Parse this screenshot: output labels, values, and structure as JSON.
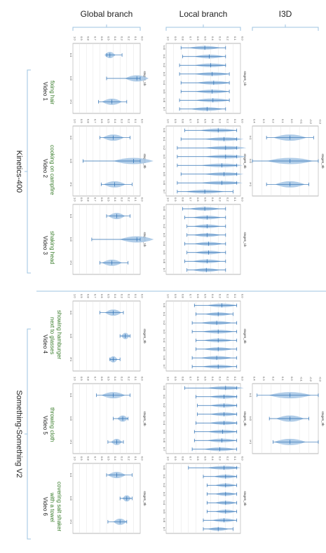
{
  "columns": [
    "Global branch",
    "Local branch",
    "I3D"
  ],
  "groups": [
    "Kinetics-400",
    "Something-Something V2"
  ],
  "videos": [
    {
      "label": "Video 1",
      "action": "fixing hair"
    },
    {
      "label": "Video 2",
      "action": "cooking on campfire"
    },
    {
      "label": "Video 3",
      "action": "shaking head"
    },
    {
      "label": "Video 4",
      "action": "showing hamburger next to glasses"
    },
    {
      "label": "Video 5",
      "action": "throwing cloth"
    },
    {
      "label": "Video 6",
      "action": "covering salt shaker with a towel"
    }
  ],
  "colors": {
    "violin": "#a9c8e6",
    "whisker": "#2c6fb3",
    "bracket": "#9cc3e0",
    "action": "#3a7d2c"
  },
  "chart_data": [
    {
      "type": "violin",
      "panel": "global-video1",
      "ylabel": "stage5_1b",
      "categories": [
        "t=1",
        "t=0",
        "t+1"
      ],
      "ylim": [
        0,
        1.0
      ],
      "grid": true,
      "series": [
        {
          "values": [
            {
              "min": 0.27,
              "q": 0.45,
              "max": 0.5
            },
            {
              "min": 0.0,
              "q": 0.05,
              "max": 0.5
            },
            {
              "min": 0.2,
              "q": 0.42,
              "max": 0.62
            }
          ]
        }
      ]
    },
    {
      "type": "violin",
      "panel": "local-video1",
      "ylabel": "stage5_1b",
      "categories": [
        "t=0",
        "t=1",
        "t=2",
        "t=3",
        "t=4",
        "t=5",
        "t=6",
        "t=7"
      ],
      "ylim": [
        0,
        1.0
      ],
      "grid": true,
      "series": [
        {
          "values": [
            {
              "min": 0.2,
              "q": 0.48,
              "max": 0.8
            },
            {
              "min": 0.2,
              "q": 0.42,
              "max": 0.78
            },
            {
              "min": 0.2,
              "q": 0.4,
              "max": 0.82
            },
            {
              "min": 0.15,
              "q": 0.38,
              "max": 0.82
            },
            {
              "min": 0.15,
              "q": 0.36,
              "max": 0.8
            },
            {
              "min": 0.15,
              "q": 0.38,
              "max": 0.8
            },
            {
              "min": 0.15,
              "q": 0.37,
              "max": 0.82
            },
            {
              "min": 0.2,
              "q": 0.45,
              "max": 0.82
            }
          ]
        }
      ]
    },
    {
      "type": "violin",
      "panel": "global-video2",
      "ylabel": "stage5_3b",
      "categories": [
        "t=1",
        "t=0",
        "t+1"
      ],
      "ylim": [
        0,
        1.0
      ],
      "grid": true,
      "series": [
        {
          "values": [
            {
              "min": 0.15,
              "q": 0.4,
              "max": 0.6
            },
            {
              "min": 0.0,
              "q": 0.1,
              "max": 0.85
            },
            {
              "min": 0.12,
              "q": 0.38,
              "max": 0.58
            }
          ]
        }
      ]
    },
    {
      "type": "violin",
      "panel": "local-video2",
      "ylabel": "stage5_3b",
      "categories": [
        "t=0",
        "t=1",
        "t=2",
        "t=3",
        "t=4",
        "t=5",
        "t=6",
        "t=7"
      ],
      "ylim": [
        0,
        1.0
      ],
      "grid": true,
      "series": [
        {
          "values": [
            {
              "min": 0.05,
              "q": 0.3,
              "max": 0.75
            },
            {
              "min": 0.05,
              "q": 0.22,
              "max": 0.8
            },
            {
              "min": 0.05,
              "q": 0.2,
              "max": 0.85
            },
            {
              "min": 0.05,
              "q": 0.2,
              "max": 0.85
            },
            {
              "min": 0.05,
              "q": 0.25,
              "max": 0.85
            },
            {
              "min": 0.05,
              "q": 0.22,
              "max": 0.8
            },
            {
              "min": 0.05,
              "q": 0.25,
              "max": 0.85
            },
            {
              "min": 0.1,
              "q": 0.48,
              "max": 0.85
            }
          ]
        }
      ]
    },
    {
      "type": "violin",
      "panel": "i3d-video2",
      "ylabel": "stage5_3b",
      "categories": [
        "t=1",
        "t=0",
        "t+1"
      ],
      "ylim": [
        -0.3,
        0.4
      ],
      "grid": true,
      "series": [
        {
          "values": [
            {
              "min": -0.25,
              "q": 0.0,
              "max": 0.25
            },
            {
              "min": -0.3,
              "q": 0.0,
              "max": 0.4
            },
            {
              "min": -0.2,
              "q": 0.0,
              "max": 0.25
            }
          ]
        }
      ]
    },
    {
      "type": "violin",
      "panel": "global-video3",
      "ylabel": "stage5_1b",
      "categories": [
        "t=1",
        "t=0",
        "t+1"
      ],
      "ylim": [
        0,
        1.0
      ],
      "grid": true,
      "series": [
        {
          "values": [
            {
              "min": 0.15,
              "q": 0.35,
              "max": 0.5
            },
            {
              "min": 0.0,
              "q": 0.05,
              "max": 0.72
            },
            {
              "min": 0.18,
              "q": 0.42,
              "max": 0.6
            }
          ]
        }
      ]
    },
    {
      "type": "violin",
      "panel": "local-video3",
      "ylabel": "stage5_1b",
      "categories": [
        "t=0",
        "t=1",
        "t=2",
        "t=3",
        "t=4",
        "t=5",
        "t=6",
        "t=7"
      ],
      "ylim": [
        0,
        1.0
      ],
      "grid": true,
      "series": [
        {
          "values": [
            {
              "min": 0.2,
              "q": 0.48,
              "max": 0.78
            },
            {
              "min": 0.2,
              "q": 0.45,
              "max": 0.75
            },
            {
              "min": 0.2,
              "q": 0.45,
              "max": 0.72
            },
            {
              "min": 0.2,
              "q": 0.45,
              "max": 0.72
            },
            {
              "min": 0.2,
              "q": 0.43,
              "max": 0.75
            },
            {
              "min": 0.2,
              "q": 0.43,
              "max": 0.72
            },
            {
              "min": 0.2,
              "q": 0.45,
              "max": 0.75
            },
            {
              "min": 0.2,
              "q": 0.46,
              "max": 0.72
            }
          ]
        }
      ]
    },
    {
      "type": "violin",
      "panel": "global-video4",
      "ylabel": "stage5_3b",
      "categories": [
        "t=1",
        "t=0",
        "t+1"
      ],
      "ylim": [
        0,
        1.0
      ],
      "grid": true,
      "series": [
        {
          "values": [
            {
              "min": 0.25,
              "q": 0.4,
              "max": 0.6
            },
            {
              "min": 0.15,
              "q": 0.22,
              "max": 0.3
            },
            {
              "min": 0.3,
              "q": 0.4,
              "max": 0.45
            }
          ]
        }
      ]
    },
    {
      "type": "violin",
      "panel": "local-video4",
      "ylabel": "stage5_3b",
      "categories": [
        "t=0",
        "t=1",
        "t=2",
        "t=3",
        "t=4",
        "t=5",
        "t=6",
        "t=7"
      ],
      "ylim": [
        0,
        1.0
      ],
      "grid": true,
      "series": [
        {
          "values": [
            {
              "min": 0.05,
              "q": 0.25,
              "max": 0.62
            },
            {
              "min": 0.1,
              "q": 0.3,
              "max": 0.6
            },
            {
              "min": 0.05,
              "q": 0.32,
              "max": 0.65
            },
            {
              "min": 0.05,
              "q": 0.3,
              "max": 0.65
            },
            {
              "min": 0.05,
              "q": 0.3,
              "max": 0.6
            },
            {
              "min": 0.05,
              "q": 0.3,
              "max": 0.6
            },
            {
              "min": 0.05,
              "q": 0.32,
              "max": 0.65
            },
            {
              "min": 0.05,
              "q": 0.3,
              "max": 0.65
            }
          ]
        }
      ]
    },
    {
      "type": "violin",
      "panel": "global-video5",
      "ylabel": "stage5_3b",
      "categories": [
        "t=1",
        "t=0",
        "t+1"
      ],
      "ylim": [
        0,
        1.0
      ],
      "grid": true,
      "series": [
        {
          "values": [
            {
              "min": 0.15,
              "q": 0.4,
              "max": 0.65
            },
            {
              "min": 0.18,
              "q": 0.26,
              "max": 0.4
            },
            {
              "min": 0.25,
              "q": 0.35,
              "max": 0.48
            }
          ]
        }
      ]
    },
    {
      "type": "violin",
      "panel": "local-video5",
      "ylabel": "stage5_3b",
      "categories": [
        "t=0",
        "t=1",
        "t=2",
        "t=3",
        "t=4",
        "t=5",
        "t=6",
        "t=7"
      ],
      "ylim": [
        0,
        1.0
      ],
      "grid": true,
      "series": [
        {
          "values": [
            {
              "min": 0.05,
              "q": 0.2,
              "max": 0.75
            },
            {
              "min": 0.05,
              "q": 0.22,
              "max": 0.6
            },
            {
              "min": 0.05,
              "q": 0.22,
              "max": 0.58
            },
            {
              "min": 0.05,
              "q": 0.22,
              "max": 0.58
            },
            {
              "min": 0.05,
              "q": 0.22,
              "max": 0.6
            },
            {
              "min": 0.05,
              "q": 0.24,
              "max": 0.62
            },
            {
              "min": 0.05,
              "q": 0.25,
              "max": 0.62
            },
            {
              "min": 0.05,
              "q": 0.28,
              "max": 0.65
            }
          ]
        }
      ]
    },
    {
      "type": "violin",
      "panel": "i3d-video5",
      "ylabel": "stage5_3b",
      "categories": [
        "t=1",
        "t=0",
        "t+1"
      ],
      "ylim": [
        -0.3,
        0.4
      ],
      "grid": true,
      "series": [
        {
          "values": [
            {
              "min": -0.3,
              "q": 0.0,
              "max": 0.35
            },
            {
              "min": -0.2,
              "q": 0.0,
              "max": 0.22
            },
            {
              "min": -0.3,
              "q": 0.0,
              "max": 0.18
            }
          ]
        }
      ]
    },
    {
      "type": "violin",
      "panel": "global-video6",
      "ylabel": "stage5_3b",
      "categories": [
        "t=1",
        "t=0",
        "t+1"
      ],
      "ylim": [
        0,
        1.0
      ],
      "grid": true,
      "series": [
        {
          "values": [
            {
              "min": 0.12,
              "q": 0.35,
              "max": 0.5
            },
            {
              "min": 0.12,
              "q": 0.2,
              "max": 0.3
            },
            {
              "min": 0.2,
              "q": 0.3,
              "max": 0.48
            }
          ]
        }
      ]
    },
    {
      "type": "violin",
      "panel": "local-video6",
      "ylabel": "stage5_3b",
      "categories": [
        "t=0",
        "t=1",
        "t=2",
        "t=3",
        "t=4",
        "t=5",
        "t=6",
        "t=7"
      ],
      "ylim": [
        0,
        1.0
      ],
      "grid": true,
      "series": [
        {
          "values": [
            {
              "min": 0.05,
              "q": 0.22,
              "max": 0.7
            },
            {
              "min": 0.05,
              "q": 0.2,
              "max": 0.5
            },
            {
              "min": 0.05,
              "q": 0.2,
              "max": 0.45
            },
            {
              "min": 0.05,
              "q": 0.2,
              "max": 0.45
            },
            {
              "min": 0.05,
              "q": 0.2,
              "max": 0.45
            },
            {
              "min": 0.05,
              "q": 0.2,
              "max": 0.45
            },
            {
              "min": 0.05,
              "q": 0.22,
              "max": 0.5
            },
            {
              "min": 0.1,
              "q": 0.3,
              "max": 0.5
            }
          ]
        }
      ]
    }
  ]
}
